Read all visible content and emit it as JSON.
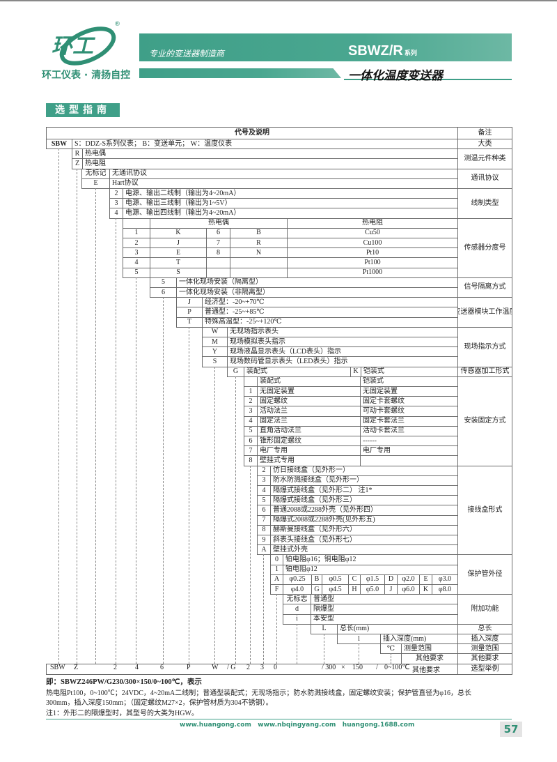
{
  "brand": {
    "logo_text": "环工",
    "registered": "®",
    "tagline": "环工仪表 · 清扬自控"
  },
  "banner": {
    "slogan": "专业的变送器制造商",
    "series": "SBWZ/R",
    "series_suffix": "系列",
    "product": "一体化温度变送器"
  },
  "section_title": "选型指南",
  "colors": {
    "brand_green": "#3f9f88",
    "text": "#222222"
  },
  "table": {
    "header": "代号及说明",
    "notes_header": "备注",
    "sbw": {
      "code": "SBW",
      "text": "S：DDZ-S系列仪表；  B：变送单元；  W：温度仪表"
    },
    "element": [
      {
        "code": "R",
        "text": "热电偶"
      },
      {
        "code": "Z",
        "text": "热电阻"
      }
    ],
    "protocol": [
      {
        "code": "无标记",
        "text": "无通讯协议"
      },
      {
        "code": "E",
        "text": "Hart协议"
      }
    ],
    "wiring": [
      {
        "code": "2",
        "text": "电源、输出二线制（输出为4~20mA）"
      },
      {
        "code": "3",
        "text": "电源、输出三线制（输出为1~5V）"
      },
      {
        "code": "4",
        "text": "电源、输出四线制（输出为4~20mA）"
      }
    ],
    "sensor": {
      "tc_header": "热电偶",
      "rtd_header": "热电阻",
      "rows": [
        [
          "1",
          "K",
          "6",
          "B",
          "Cu50"
        ],
        [
          "2",
          "J",
          "7",
          "R",
          "Cu100"
        ],
        [
          "3",
          "E",
          "8",
          "N",
          "Pt10"
        ],
        [
          "4",
          "T",
          "",
          "",
          "Pt100"
        ],
        [
          "5",
          "S",
          "",
          "",
          "Pt1000"
        ]
      ]
    },
    "isolation": [
      {
        "code": "5",
        "text": "一体化现场安装（隔离型）"
      },
      {
        "code": "6",
        "text": "一体化现场安装（非隔离型）"
      }
    ],
    "temp": [
      {
        "code": "J",
        "text": "经济型：-20~+70℃"
      },
      {
        "code": "P",
        "text": "普通型：-25~+85℃"
      },
      {
        "code": "T",
        "text": "特殊高温型：-25~+120℃"
      }
    ],
    "display": [
      {
        "code": "W",
        "text": "无现场指示表头"
      },
      {
        "code": "M",
        "text": "现场模拟表头指示"
      },
      {
        "code": "Y",
        "text": "现场液晶显示表头（LCD表头）指示"
      },
      {
        "code": "S",
        "text": "现场数码管显示表头（LED表头）指示"
      }
    ],
    "processing": {
      "code1": "G",
      "text1": "装配式",
      "code2": "K",
      "text2": "铠装式"
    },
    "mounting": {
      "header": [
        "装配式",
        "铠装式"
      ],
      "rows": [
        [
          "1",
          "无固定装置",
          "无固定装置"
        ],
        [
          "2",
          "固定螺纹",
          "固定卡套螺纹"
        ],
        [
          "3",
          "活动法兰",
          "可动卡套螺纹"
        ],
        [
          "4",
          "固定法兰",
          "固定卡套法兰"
        ],
        [
          "5",
          "直角活动法兰",
          "活动卡套法兰"
        ],
        [
          "6",
          "锥形固定螺纹",
          "------"
        ],
        [
          "7",
          "电厂专用",
          "电厂专用"
        ],
        [
          "8",
          "壁挂式专用",
          ""
        ]
      ]
    },
    "junction": [
      {
        "code": "2",
        "text": "仿日接线盒（见外形一）"
      },
      {
        "code": "3",
        "text": "防水防溅接线盒（见外形一）"
      },
      {
        "code": "4",
        "text": "隔爆式接线盒（见外形二） 注1*"
      },
      {
        "code": "5",
        "text": "隔爆式接线盒（见外形三）"
      },
      {
        "code": "6",
        "text": "普通2088或2288外壳（见外形四）"
      },
      {
        "code": "7",
        "text": "隔爆式2088或2288外壳(见外形五)"
      },
      {
        "code": "8",
        "text": "赫斯曼接线盒（见外形六）"
      },
      {
        "code": "9",
        "text": "斜表头接线盒（见外形七）"
      },
      {
        "code": "A",
        "text": "壁挂式外壳"
      }
    ],
    "tube": {
      "rows": [
        {
          "code": "0",
          "text": "铂电阻φ16；铜电阻φ12"
        },
        {
          "code": "1",
          "text": "铂电阻φ12"
        }
      ],
      "grid": [
        [
          [
            "A",
            "φ0.25"
          ],
          [
            "B",
            "φ0.5"
          ],
          [
            "C",
            "φ1.5"
          ],
          [
            "D",
            "φ2.0"
          ],
          [
            "E",
            "φ3.0"
          ]
        ],
        [
          [
            "F",
            "φ4.0"
          ],
          [
            "G",
            "φ4.5"
          ],
          [
            "H",
            "φ5.0"
          ],
          [
            "J",
            "φ6.0"
          ],
          [
            "K",
            "φ8.0"
          ]
        ]
      ]
    },
    "extra": [
      {
        "code": "无标志",
        "text": "普通型"
      },
      {
        "code": "d",
        "text": "隔爆型"
      },
      {
        "code": "i",
        "text": "本安型"
      }
    ],
    "length": {
      "code": "L",
      "text": "总长(mm)"
    },
    "depth": {
      "code": "l",
      "text": "插入深度(mm)"
    },
    "range": {
      "code": "℃",
      "text": "测量范围"
    },
    "other": {
      "text": "其他要求"
    },
    "notes": [
      "大类",
      "测温元件种类",
      "通讯协议",
      "线制类型",
      "传感器分度号",
      "信号隔离方式",
      "变送器模块工作温度",
      "现场指示方式",
      "传感器加工形式",
      "安装固定方式",
      "接线盒形式",
      "保护管外径",
      "附加功能",
      "总长",
      "插入深度",
      "测量范围",
      "其他要求",
      "选型举例"
    ],
    "example": [
      "SBW",
      "Z",
      "2",
      "4",
      "6",
      "P",
      "W",
      "/ G",
      "2",
      "3",
      "0",
      "/ 300",
      "×",
      "150",
      "/",
      "0~100℃",
      "其他要求"
    ]
  },
  "explanation": {
    "title": "即：SBWZ246PW/G230/300×150/0~100℃，表示",
    "line1": "热电阻Pt100，0~100℃；24VDC，4~20mA二线制；普通型装配式；无现场指示；防水防溅接线盒，固定螺纹安装；保护管直径为φ16，总长",
    "line2": "300mm，插入深度150mm；（固定螺纹M27×2，保护管材质为304不锈钢）。",
    "note": "注1：外形二的隔爆型时，其型号的大类为HGW。"
  },
  "footer": {
    "websites": "www.huangong.com   www.nbqingyang.com   huangong.1688.com",
    "page": "57"
  }
}
